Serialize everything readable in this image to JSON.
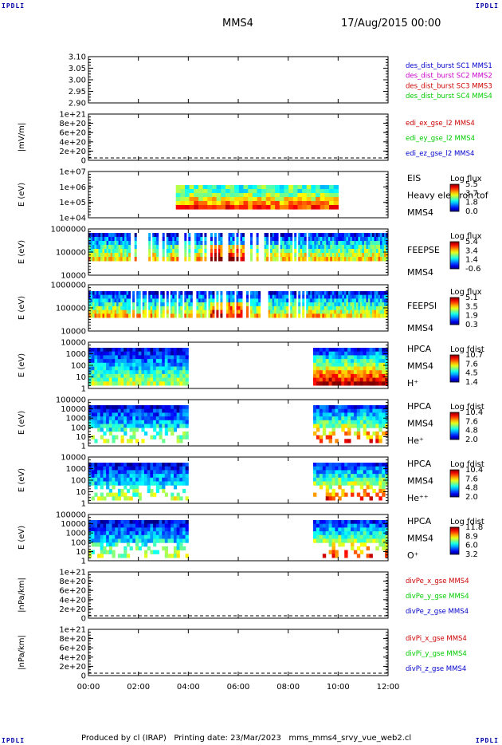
{
  "header": {
    "logo_left": "IPDLI",
    "logo_right": "IPDLI",
    "spacecraft": "MMS4",
    "date": "17/Aug/2015 00:00"
  },
  "footer": {
    "text": "Produced by cl (IRAP)   Printing date: 23/Mar/2023   mms_mms4_srvy_vue_web2.cl",
    "logo_left": "IPDLI",
    "logo_right": "IPDLI"
  },
  "chart_data": {
    "type": "heatmap",
    "x_ticks": [
      "00:00",
      "02:00",
      "04:00",
      "06:00",
      "08:00",
      "10:00",
      "12:00"
    ],
    "xlim": [
      "00:00",
      "12:00"
    ],
    "colors": {
      "blue": "#0000cc",
      "magenta": "#cc00cc",
      "red": "#cc0000",
      "green": "#00cc00"
    },
    "panels": [
      {
        "ylabel": "",
        "yticks": [
          "3.10",
          "3.05",
          "3.00",
          "2.95",
          "2.90"
        ],
        "labels": [
          {
            "text": "des_dist_burst SC1 MMS1",
            "color": "blue"
          },
          {
            "text": "des_dist_burst SC2 MMS2",
            "color": "magenta"
          },
          {
            "text": "des_dist_burst SC3 MMS3",
            "color": "red"
          },
          {
            "text": "des_dist_burst SC4 MMS4",
            "color": "green"
          }
        ]
      },
      {
        "ylabel": "|mV/m|",
        "yticks": [
          "1e+21",
          "8e+20",
          "6e+20",
          "4e+20",
          "2e+20",
          "0"
        ],
        "zero_line": true,
        "labels": [
          {
            "text": "edi_ex_gse_l2 MMS4",
            "color": "red"
          },
          {
            "text": "edi_ey_gse_l2 MMS4",
            "color": "green"
          },
          {
            "text": "edi_ez_gse_l2 MMS4",
            "color": "blue"
          }
        ]
      },
      {
        "ylabel": "E (eV)",
        "yticks": [
          "1e+07",
          "1e+06",
          "1e+05",
          "1e+04"
        ],
        "labels": [
          {
            "text": "EIS",
            "color": "black"
          },
          {
            "text": "Heavy electron tof",
            "color": "black"
          },
          {
            "text": "MMS4",
            "color": "black"
          }
        ],
        "colorbar": {
          "title": "Log flux",
          "values": [
            "5.5",
            "3.7",
            "1.8",
            "0.0"
          ]
        },
        "spectrogram": {
          "start": "03:30",
          "end": "10:00"
        }
      },
      {
        "ylabel": "E (eV)",
        "yticks": [
          "1000000",
          "100000",
          "10000"
        ],
        "labels": [
          {
            "text": "FEEPSE",
            "color": "black"
          },
          {
            "text": "MMS4",
            "color": "black"
          }
        ],
        "colorbar": {
          "title": "Log flux",
          "values": [
            "5.4",
            "3.4",
            "1.4",
            "-0.6"
          ]
        },
        "spectrogram": {
          "start": "00:00",
          "end": "12:00"
        }
      },
      {
        "ylabel": "E (eV)",
        "yticks": [
          "1000000",
          "100000",
          "10000"
        ],
        "labels": [
          {
            "text": "FEEPSI",
            "color": "black"
          },
          {
            "text": "MMS4",
            "color": "black"
          }
        ],
        "colorbar": {
          "title": "Log flux",
          "values": [
            "5.1",
            "3.5",
            "1.9",
            "0.3"
          ]
        },
        "spectrogram": {
          "start": "00:00",
          "end": "12:00"
        }
      },
      {
        "ylabel": "E (eV)",
        "yticks": [
          "10000",
          "1000",
          "100",
          "10",
          "1"
        ],
        "labels": [
          {
            "text": "HPCA",
            "color": "black"
          },
          {
            "text": "MMS4",
            "color": "black"
          },
          {
            "text": "H⁺",
            "color": "black"
          }
        ],
        "colorbar": {
          "title": "Log fdist",
          "values": [
            "10.7",
            "7.6",
            "4.5",
            "1.4"
          ]
        },
        "spectrogram": {
          "segments": [
            [
              "00:00",
              "04:00"
            ],
            [
              "09:00",
              "12:00"
            ]
          ]
        }
      },
      {
        "ylabel": "E (eV)",
        "yticks": [
          "100000",
          "10000",
          "1000",
          "100",
          "10",
          "1"
        ],
        "labels": [
          {
            "text": "HPCA",
            "color": "black"
          },
          {
            "text": "MMS4",
            "color": "black"
          },
          {
            "text": "He⁺",
            "color": "black"
          }
        ],
        "colorbar": {
          "title": "Log fdist",
          "values": [
            "10.4",
            "7.6",
            "4.8",
            "2.0"
          ]
        },
        "spectrogram": {
          "segments": [
            [
              "00:00",
              "04:00"
            ],
            [
              "09:00",
              "12:00"
            ]
          ]
        }
      },
      {
        "ylabel": "E (eV)",
        "yticks": [
          "10000",
          "1000",
          "100",
          "10",
          "1"
        ],
        "labels": [
          {
            "text": "HPCA",
            "color": "black"
          },
          {
            "text": "MMS4",
            "color": "black"
          },
          {
            "text": "He⁺⁺",
            "color": "black"
          }
        ],
        "colorbar": {
          "title": "Log fdist",
          "values": [
            "10.4",
            "7.6",
            "4.8",
            "2.0"
          ]
        },
        "spectrogram": {
          "segments": [
            [
              "00:00",
              "04:00"
            ],
            [
              "09:00",
              "12:00"
            ]
          ]
        }
      },
      {
        "ylabel": "E (eV)",
        "yticks": [
          "100000",
          "10000",
          "1000",
          "100",
          "10",
          "1"
        ],
        "labels": [
          {
            "text": "HPCA",
            "color": "black"
          },
          {
            "text": "MMS4",
            "color": "black"
          },
          {
            "text": "O⁺",
            "color": "black"
          }
        ],
        "colorbar": {
          "title": "Log fdist",
          "values": [
            "11.8",
            "8.9",
            "6.0",
            "3.2"
          ]
        },
        "spectrogram": {
          "segments": [
            [
              "00:00",
              "04:00"
            ],
            [
              "09:00",
              "12:00"
            ]
          ]
        }
      },
      {
        "ylabel": "|nPa/km|",
        "yticks": [
          "1e+21",
          "8e+20",
          "6e+20",
          "4e+20",
          "2e+20",
          "0"
        ],
        "zero_line": true,
        "labels": [
          {
            "text": "divPe_x_gse MMS4",
            "color": "red"
          },
          {
            "text": "divPe_y_gse MMS4",
            "color": "green"
          },
          {
            "text": "divPe_z_gse MMS4",
            "color": "blue"
          }
        ]
      },
      {
        "ylabel": "|nPa/km|",
        "yticks": [
          "1e+21",
          "8e+20",
          "6e+20",
          "4e+20",
          "2e+20",
          "0"
        ],
        "zero_line": true,
        "labels": [
          {
            "text": "divPi_x_gse MMS4",
            "color": "red"
          },
          {
            "text": "divPi_y_gse MMS4",
            "color": "green"
          },
          {
            "text": "divPi_z_gse MMS4",
            "color": "blue"
          }
        ]
      }
    ]
  }
}
